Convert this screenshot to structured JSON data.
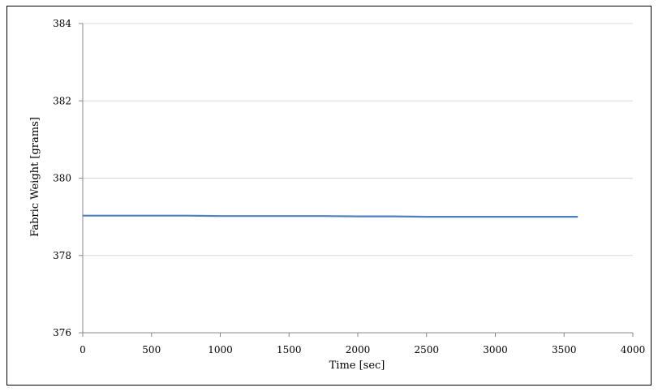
{
  "chart_data": {
    "type": "line",
    "title": "",
    "xlabel": "Time [sec]",
    "ylabel": "Fabric Weight [grams]",
    "xlim": [
      0,
      4000
    ],
    "ylim": [
      376,
      384
    ],
    "xticks": [
      0,
      500,
      1000,
      1500,
      2000,
      2500,
      3000,
      3500,
      4000
    ],
    "yticks": [
      376,
      378,
      380,
      382,
      384
    ],
    "grid": {
      "horizontal": true,
      "vertical": false
    },
    "legend": "none",
    "colors": {
      "series": "#4f81bd",
      "grid": "#d9d9d9",
      "axis": "#888888"
    },
    "series": [
      {
        "x": [
          0,
          250,
          500,
          750,
          1000,
          1250,
          1500,
          1750,
          2000,
          2250,
          2500,
          2750,
          3000,
          3250,
          3500,
          3600
        ],
        "y": [
          379.03,
          379.03,
          379.03,
          379.03,
          379.02,
          379.02,
          379.02,
          379.02,
          379.01,
          379.01,
          379.0,
          379.0,
          379.0,
          379.0,
          379.0,
          379.0
        ]
      }
    ]
  }
}
